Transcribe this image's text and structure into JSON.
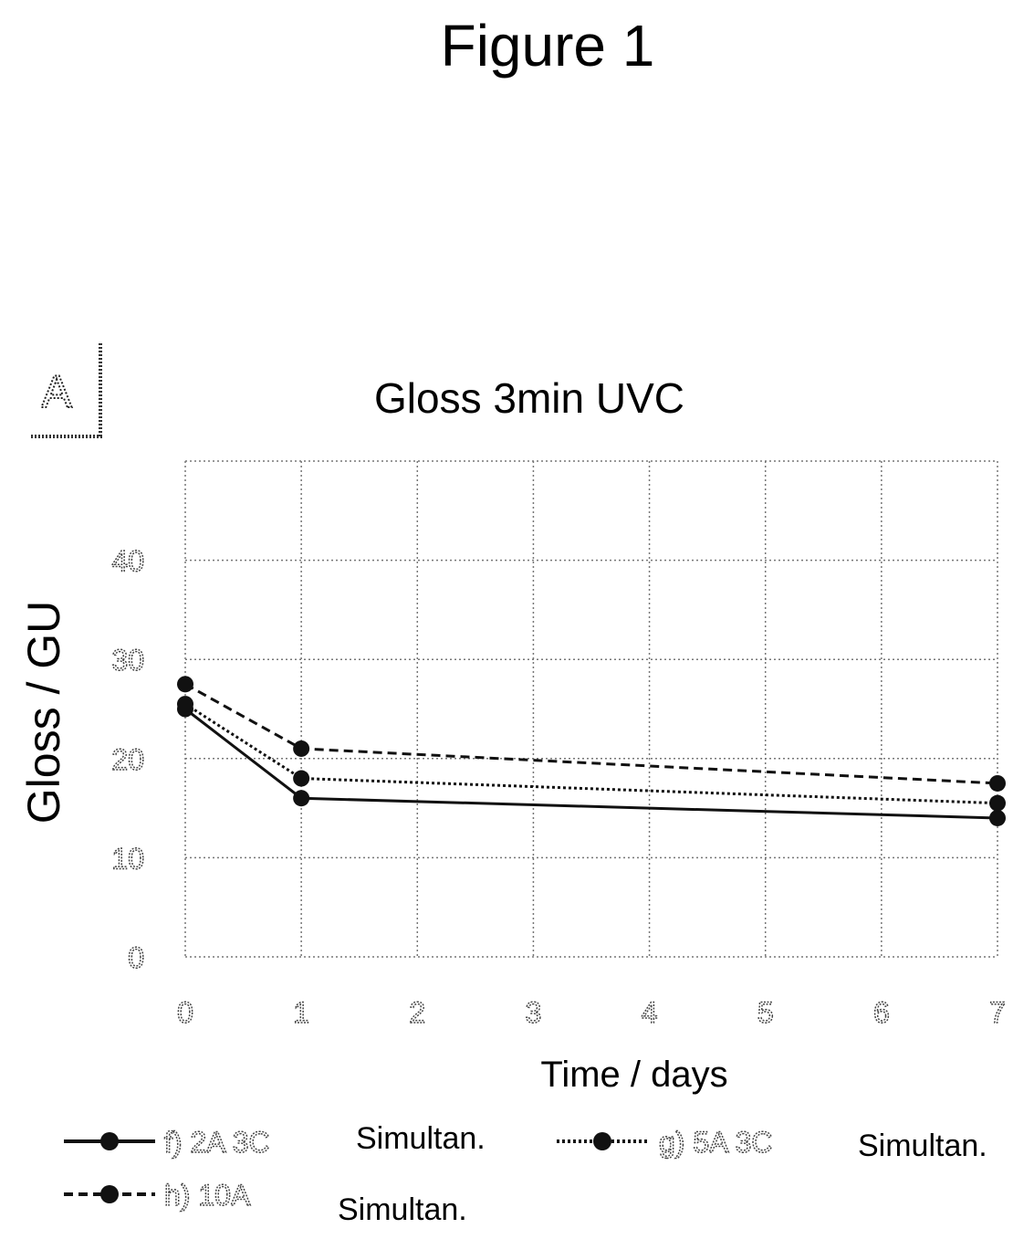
{
  "figure_title": "Figure 1",
  "panel_label": "A",
  "chart_data": {
    "type": "line",
    "title": "Gloss 3min UVC",
    "xlabel": "Time / days",
    "ylabel": "Gloss / GU",
    "x_ticks": [
      "0",
      "1",
      "2",
      "3",
      "4",
      "5",
      "6",
      "7"
    ],
    "y_ticks": [
      "0",
      "10",
      "20",
      "30",
      "40"
    ],
    "xlim": [
      0,
      7
    ],
    "ylim": [
      0,
      50
    ],
    "grid": true,
    "legend_position": "bottom",
    "x": [
      0,
      1,
      7
    ],
    "series": [
      {
        "name": "f) 2A 3C",
        "suffix": "Simultan.",
        "values": [
          25,
          16,
          14
        ],
        "style": "solid"
      },
      {
        "name": "g) 5A 3C",
        "suffix": "Simultan.",
        "values": [
          25.5,
          18,
          15.5
        ],
        "style": "dotted"
      },
      {
        "name": "h) 10A",
        "suffix": "Simultan.",
        "values": [
          27.5,
          21,
          17.5
        ],
        "style": "dashed"
      }
    ]
  }
}
